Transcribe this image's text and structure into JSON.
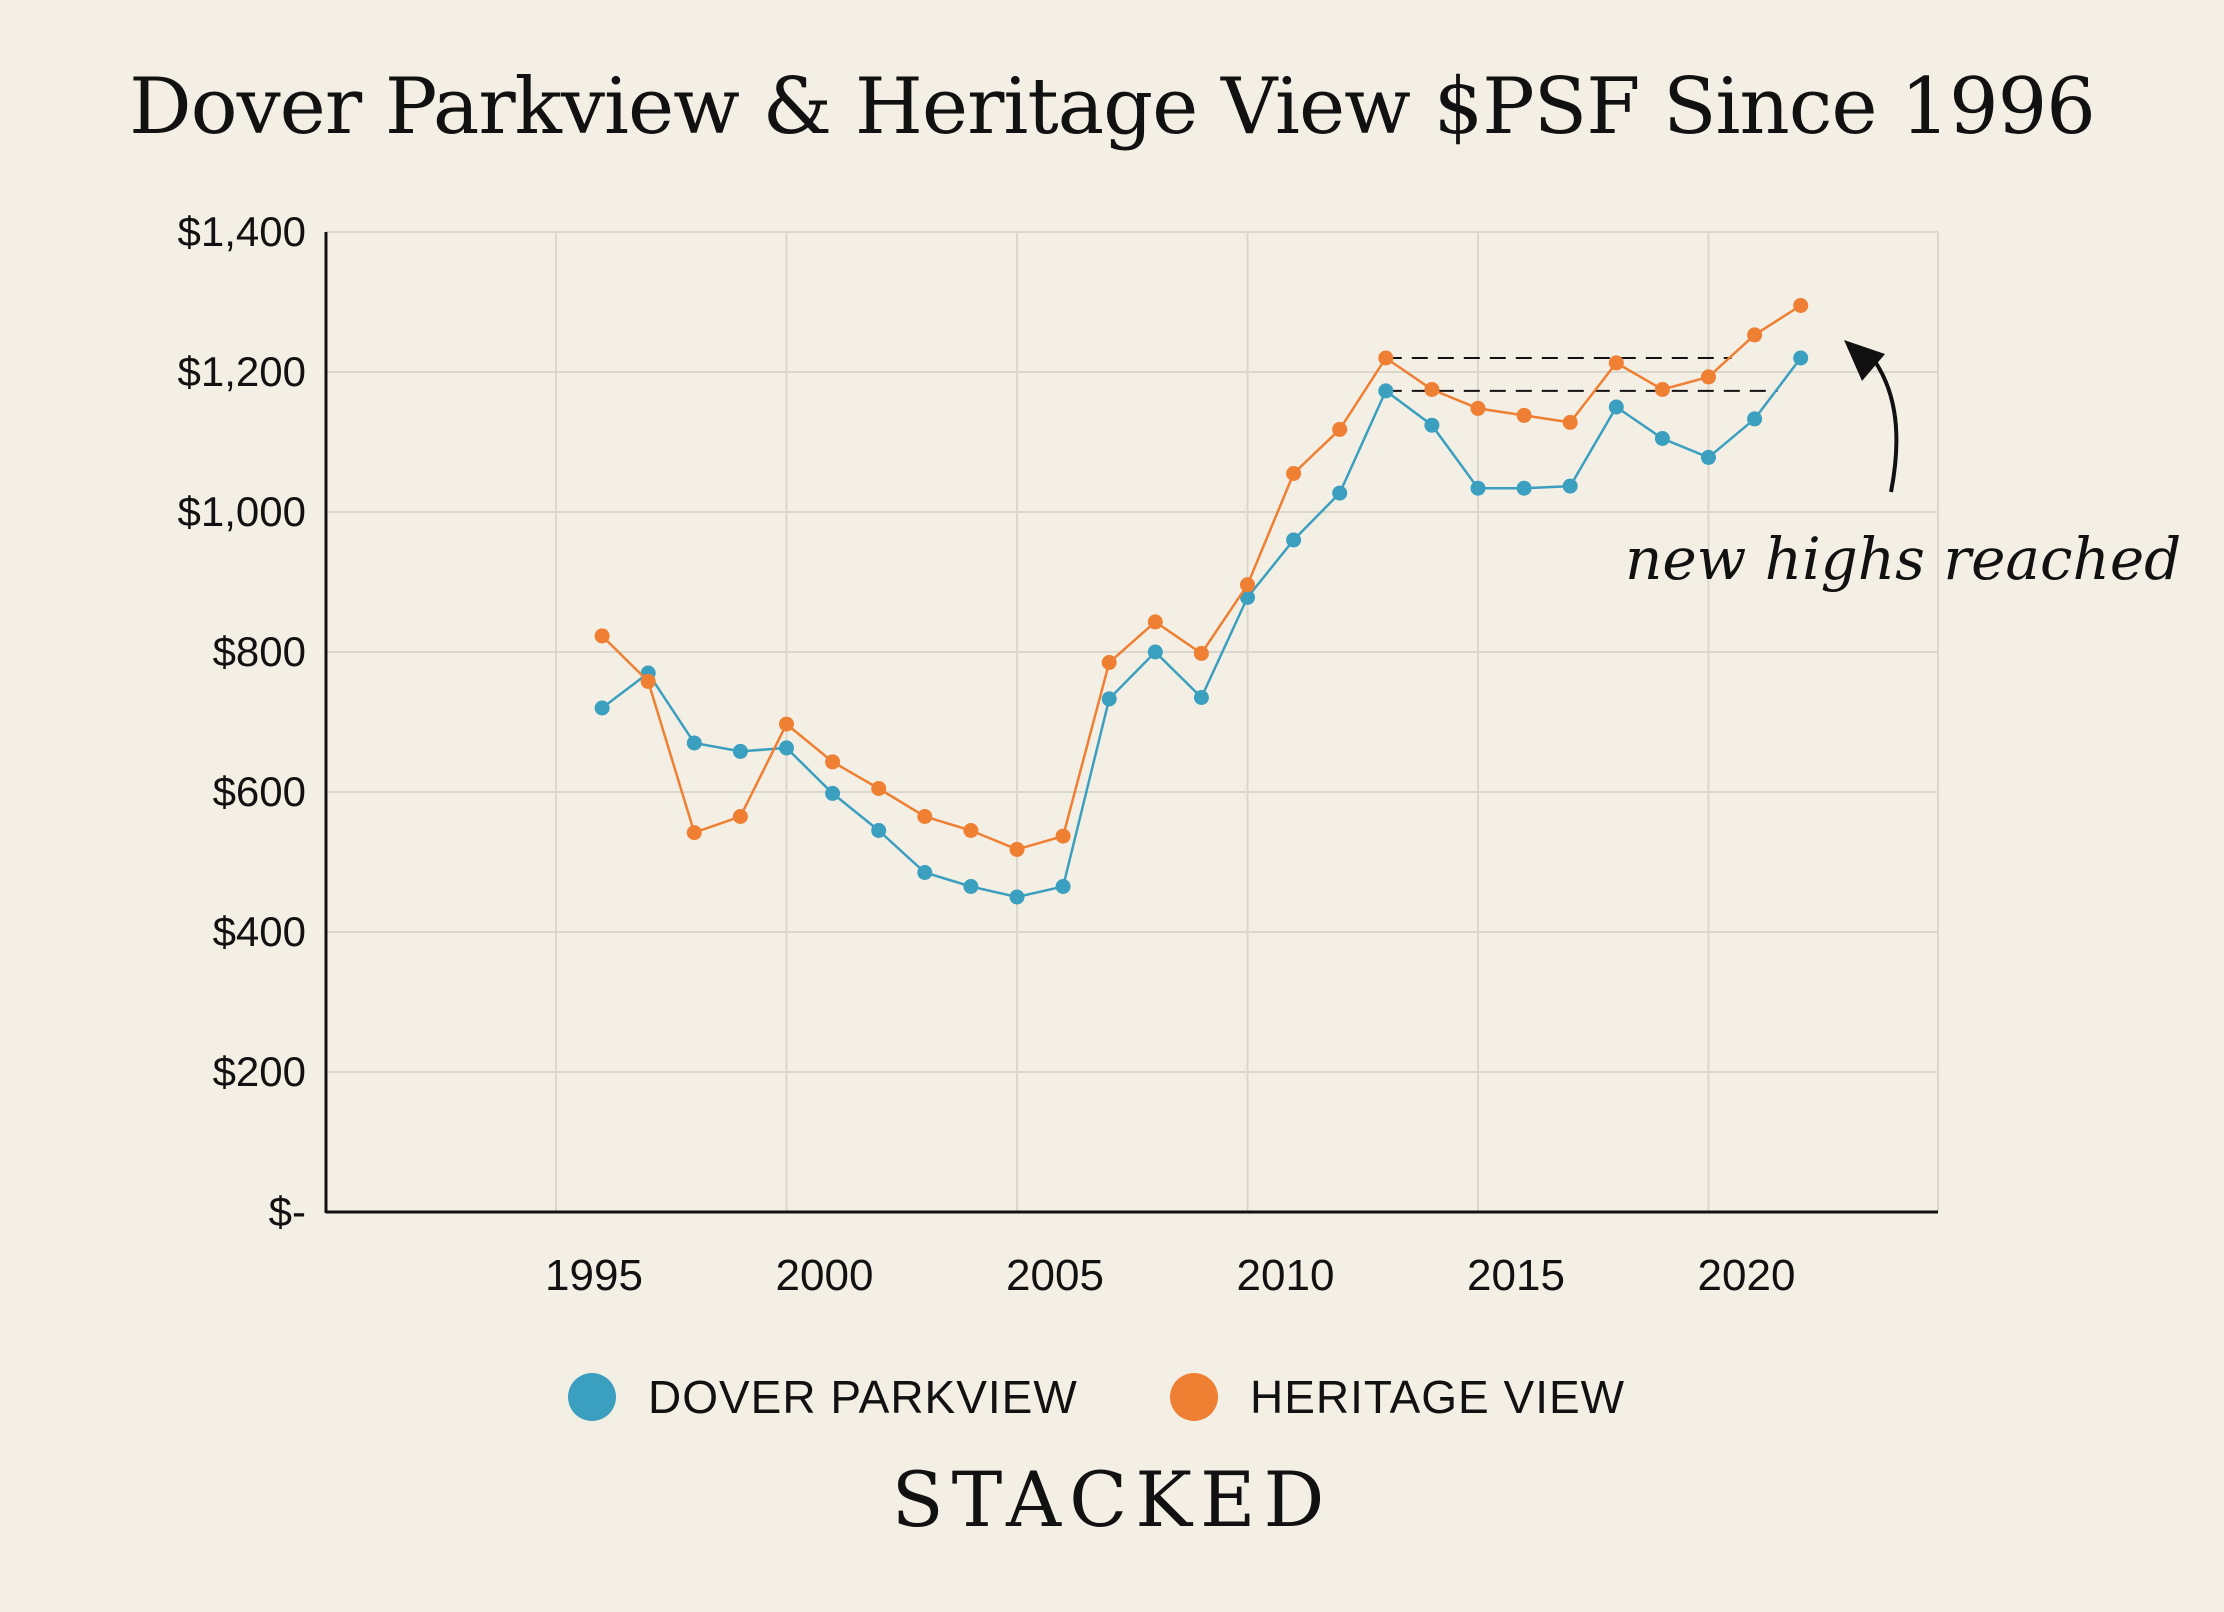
{
  "brand": {
    "logo_text": "STACKED"
  },
  "annotation": {
    "text": "new highs reached"
  },
  "chart_data": {
    "type": "line",
    "title": "Dover Parkview & Heritage View $PSF Since 1996",
    "xlabel": "",
    "ylabel": "",
    "xlim": [
      1990,
      2025
    ],
    "ylim": [
      0,
      1400
    ],
    "x_ticks": [
      1995,
      2000,
      2005,
      2010,
      2015,
      2020
    ],
    "x_tick_labels": [
      "1995",
      "2000",
      "2005",
      "2010",
      "2015",
      "2020"
    ],
    "y_ticks": [
      0,
      200,
      400,
      600,
      800,
      1000,
      1200,
      1400
    ],
    "y_tick_labels": [
      "$-",
      "$200",
      "$400",
      "$600",
      "$800",
      "$1,000",
      "$1,200",
      "$1,400"
    ],
    "grid": true,
    "legend_position": "bottom",
    "x": [
      1996,
      1997,
      1998,
      1999,
      2000,
      2001,
      2002,
      2003,
      2004,
      2005,
      2006,
      2007,
      2008,
      2009,
      2010,
      2011,
      2012,
      2013,
      2014,
      2015,
      2016,
      2017,
      2018,
      2019,
      2020,
      2021,
      2022
    ],
    "series": [
      {
        "name": "DOVER PARKVIEW",
        "color": "#3b9fc0",
        "values": [
          720,
          770,
          670,
          658,
          663,
          598,
          545,
          485,
          465,
          450,
          465,
          733,
          800,
          735,
          878,
          960,
          1027,
          1173,
          1124,
          1034,
          1034,
          1037,
          1150,
          1105,
          1078,
          1133,
          1220
        ]
      },
      {
        "name": "HERITAGE VIEW",
        "color": "#ee7f33",
        "values": [
          823,
          758,
          542,
          565,
          697,
          643,
          605,
          565,
          545,
          518,
          537,
          785,
          843,
          798,
          896,
          1055,
          1118,
          1220,
          1175,
          1148,
          1138,
          1128,
          1213,
          1175,
          1193,
          1253,
          1295
        ]
      }
    ],
    "reference_lines": [
      {
        "y": 1220,
        "x_from": 2013,
        "x_to": 2020.5,
        "style": "dashed",
        "color": "#111111"
      },
      {
        "y": 1173,
        "x_from": 2013,
        "x_to": 2021.5,
        "style": "dashed",
        "color": "#111111"
      }
    ]
  }
}
